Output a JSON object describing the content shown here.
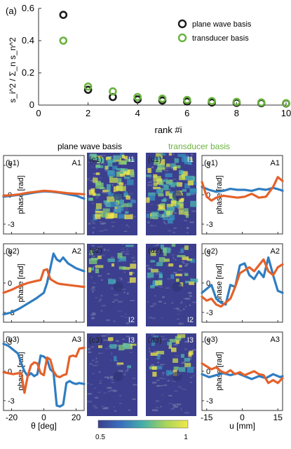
{
  "colors": {
    "plane_wave": "#1a1a1a",
    "transducer": "#6ab23e",
    "blue": "#2f7dc1",
    "orange": "#e4612a",
    "axis": "#333333",
    "map_low": "#3b3f8e",
    "map_high": "#f2e84a"
  },
  "chart_data": [
    {
      "id": "a",
      "type": "scatter",
      "panel_label": "(a)",
      "xlabel": "rank #i",
      "ylabel": "s_i^2 / Σ_n s_n^2",
      "xlim": [
        0,
        10
      ],
      "ylim": [
        0,
        0.6
      ],
      "xticks": [
        0,
        2,
        4,
        6,
        8,
        10
      ],
      "yticks": [
        0,
        0.2,
        0.4,
        0.6
      ],
      "xtick_labels": [
        "0",
        "2",
        "4",
        "6",
        "8",
        "10"
      ],
      "ytick_labels": [
        "0",
        "0.2",
        "0.4",
        "0.6"
      ],
      "legend_position": "top-right",
      "series": [
        {
          "name": "plane wave basis",
          "color_key": "plane_wave",
          "x": [
            1,
            2,
            3,
            4,
            5,
            6,
            7,
            8,
            9,
            10
          ],
          "y": [
            0.56,
            0.095,
            0.05,
            0.035,
            0.028,
            0.022,
            0.016,
            0.014,
            0.012,
            0.01
          ]
        },
        {
          "name": "transducer basis",
          "color_key": "transducer",
          "x": [
            1,
            2,
            3,
            4,
            5,
            6,
            7,
            8,
            9,
            10
          ],
          "y": [
            0.4,
            0.115,
            0.085,
            0.05,
            0.04,
            0.032,
            0.025,
            0.02,
            0.016,
            0.012
          ]
        }
      ]
    },
    {
      "id": "b",
      "type": "line",
      "column_title": "plane wave basis",
      "xlabel": "θ [deg]",
      "ylabel": "phase [rad]",
      "xlim": [
        -25,
        25
      ],
      "ylim": [
        -4,
        4
      ],
      "xticks": [
        -20,
        0,
        20
      ],
      "xtick_labels": [
        "-20",
        "0",
        "20"
      ],
      "yticks": [
        -3,
        0,
        3
      ],
      "ytick_labels": [
        "-3",
        "0",
        "3"
      ],
      "rows": [
        {
          "label": "(b1)",
          "amp": "A1",
          "series": [
            {
              "color_key": "blue",
              "x": [
                -25,
                -20,
                -15,
                -10,
                -5,
                0,
                5,
                10,
                15,
                20,
                25
              ],
              "y": [
                -0.2,
                -0.1,
                0.0,
                0.1,
                0.25,
                0.35,
                0.3,
                0.2,
                0.05,
                -0.1,
                -0.4
              ]
            },
            {
              "color_key": "orange",
              "x": [
                -25,
                -20,
                -15,
                -10,
                -5,
                0,
                5,
                10,
                15,
                20,
                25
              ],
              "y": [
                -0.1,
                -0.05,
                0.05,
                0.2,
                0.3,
                0.4,
                0.35,
                0.25,
                0.15,
                0.1,
                0.05
              ]
            }
          ]
        },
        {
          "label": "(b2)",
          "amp": "A2",
          "series": [
            {
              "color_key": "blue",
              "x": [
                -25,
                -20,
                -15,
                -10,
                -5,
                0,
                2,
                4,
                6,
                8,
                10,
                12,
                15,
                20,
                25
              ],
              "y": [
                -3.2,
                -3.0,
                -2.6,
                -2.1,
                -1.6,
                -1.0,
                0.0,
                1.5,
                3.0,
                2.4,
                2.2,
                2.6,
                2.0,
                1.5,
                1.2
              ]
            },
            {
              "color_key": "orange",
              "x": [
                -25,
                -20,
                -15,
                -10,
                -5,
                -2,
                0,
                2,
                4,
                6,
                8,
                10,
                15,
                20,
                25
              ],
              "y": [
                -1.0,
                -0.7,
                -0.3,
                0.0,
                0.2,
                0.3,
                1.3,
                1.4,
                0.4,
                0.2,
                0.0,
                -0.1,
                -0.2,
                -0.3,
                -0.4
              ]
            }
          ]
        },
        {
          "label": "(b3)",
          "amp": "A3",
          "series": [
            {
              "color_key": "blue",
              "x": [
                -25,
                -22,
                -19,
                -16,
                -14,
                -12,
                -10,
                -8,
                -6,
                -4,
                -2,
                0,
                2,
                4,
                6,
                8,
                10,
                12,
                14,
                16,
                18,
                20,
                22,
                25
              ],
              "y": [
                2.8,
                2.6,
                2.2,
                1.8,
                0.8,
                0.0,
                -0.5,
                -0.2,
                -0.5,
                -0.3,
                1.6,
                1.5,
                1.2,
                0.2,
                -0.1,
                -3.5,
                -3.6,
                -3.4,
                -1.2,
                -1.0,
                -1.2,
                -1.3,
                -1.2,
                -1.3
              ]
            },
            {
              "color_key": "orange",
              "x": [
                -25,
                -22,
                -19,
                -16,
                -14,
                -12,
                -10,
                -8,
                -6,
                -4,
                -2,
                0,
                2,
                4,
                6,
                8,
                10,
                12,
                14,
                16,
                18,
                20,
                22,
                25
              ],
              "y": [
                -0.1,
                -0.2,
                -0.3,
                -0.2,
                -0.2,
                -2.2,
                -0.5,
                0.6,
                0.9,
                0.8,
                -0.2,
                -0.4,
                1.4,
                1.2,
                0.0,
                -0.5,
                -0.6,
                -0.4,
                -0.3,
                1.5,
                1.6,
                1.5,
                2.3,
                2.4
              ]
            }
          ]
        }
      ]
    },
    {
      "id": "e",
      "type": "line",
      "column_title": "transducer basis",
      "xlabel": "u [mm]",
      "ylabel": "phase [rad]",
      "xlim": [
        -17,
        17
      ],
      "ylim": [
        -4,
        4
      ],
      "xticks": [
        -15,
        0,
        15
      ],
      "xtick_labels": [
        "-15",
        "0",
        "15"
      ],
      "yticks": [
        -3,
        0,
        3
      ],
      "ytick_labels": [
        "-3",
        "0",
        "3"
      ],
      "rows": [
        {
          "label": "(e1)",
          "amp": "A1",
          "series": [
            {
              "color_key": "blue",
              "x": [
                -17,
                -14,
                -11,
                -8,
                -5,
                -2,
                1,
                4,
                7,
                10,
                13,
                16,
                17
              ],
              "y": [
                0.8,
                0.5,
                0.3,
                0.4,
                0.6,
                0.5,
                0.5,
                0.4,
                0.6,
                0.5,
                0.7,
                0.5,
                0.4
              ]
            },
            {
              "color_key": "orange",
              "x": [
                -17,
                -15,
                -13,
                -11,
                -8,
                -5,
                -2,
                1,
                4,
                7,
                10,
                13,
                15,
                17
              ],
              "y": [
                1.3,
                -0.2,
                -0.6,
                -0.3,
                -0.1,
                -0.2,
                -0.3,
                -0.2,
                0.1,
                -0.3,
                -0.2,
                0.8,
                1.8,
                1.4
              ]
            }
          ]
        },
        {
          "label": "(e2)",
          "amp": "A2",
          "series": [
            {
              "color_key": "blue",
              "x": [
                -17,
                -15,
                -13,
                -11,
                -9,
                -7,
                -5,
                -3,
                -1,
                1,
                3,
                5,
                7,
                9,
                11,
                13,
                15,
                17
              ],
              "y": [
                -1.0,
                -0.6,
                -0.2,
                -1.6,
                -2.0,
                -2.2,
                -0.2,
                -0.4,
                1.8,
                2.0,
                0.8,
                0.4,
                1.2,
                0.6,
                2.6,
                0.8,
                -0.8,
                -1.0
              ]
            },
            {
              "color_key": "orange",
              "x": [
                -17,
                -15,
                -13,
                -11,
                -9,
                -7,
                -5,
                -3,
                -1,
                1,
                3,
                5,
                7,
                9,
                11,
                13,
                15,
                17
              ],
              "y": [
                -1.4,
                -1.8,
                -1.6,
                -2.2,
                -2.4,
                -2.0,
                -1.6,
                -0.4,
                1.0,
                1.3,
                1.6,
                1.2,
                1.8,
                2.4,
                1.2,
                0.8,
                1.6,
                1.9
              ]
            }
          ]
        },
        {
          "label": "(e3)",
          "amp": "A3",
          "series": [
            {
              "color_key": "blue",
              "x": [
                -17,
                -14,
                -11,
                -8,
                -5,
                -2,
                1,
                4,
                7,
                10,
                13,
                16,
                17
              ],
              "y": [
                -0.3,
                -0.6,
                -0.4,
                -0.2,
                -0.4,
                -0.2,
                -0.5,
                -0.8,
                -0.5,
                -0.7,
                -0.3,
                -0.6,
                -0.5
              ]
            },
            {
              "color_key": "orange",
              "x": [
                -17,
                -15,
                -13,
                -11,
                -9,
                -7,
                -5,
                -3,
                -1,
                1,
                3,
                5,
                7,
                9,
                11,
                13,
                15,
                17
              ],
              "y": [
                0.8,
                0.5,
                0.2,
                0.4,
                0.0,
                -0.2,
                0.1,
                -0.3,
                -0.1,
                -0.4,
                -0.2,
                0.0,
                -0.3,
                -0.4,
                -1.2,
                -0.9,
                -1.2,
                -0.7
              ]
            }
          ]
        }
      ]
    },
    {
      "id": "c",
      "type": "heatmap",
      "column_title": "plane wave basis",
      "colorbar": {
        "min": 0.5,
        "max": 1,
        "tick_labels": [
          "0.5",
          "1"
        ]
      },
      "maps": [
        {
          "label": "(c1)",
          "intensity": "I1",
          "coverage": 0.7
        },
        {
          "label": "(c2)",
          "intensity": "I2",
          "coverage": 0.15
        },
        {
          "label": "(c3)",
          "intensity": "I3",
          "coverage": 0.08
        }
      ]
    },
    {
      "id": "d",
      "type": "heatmap",
      "column_title": "transducer basis",
      "maps": [
        {
          "label": "(d1)",
          "intensity": "I1",
          "coverage": 0.75
        },
        {
          "label": "(d2)",
          "intensity": "I2",
          "coverage": 0.25
        },
        {
          "label": "(d3)",
          "intensity": "I3",
          "coverage": 0.2
        }
      ]
    }
  ]
}
